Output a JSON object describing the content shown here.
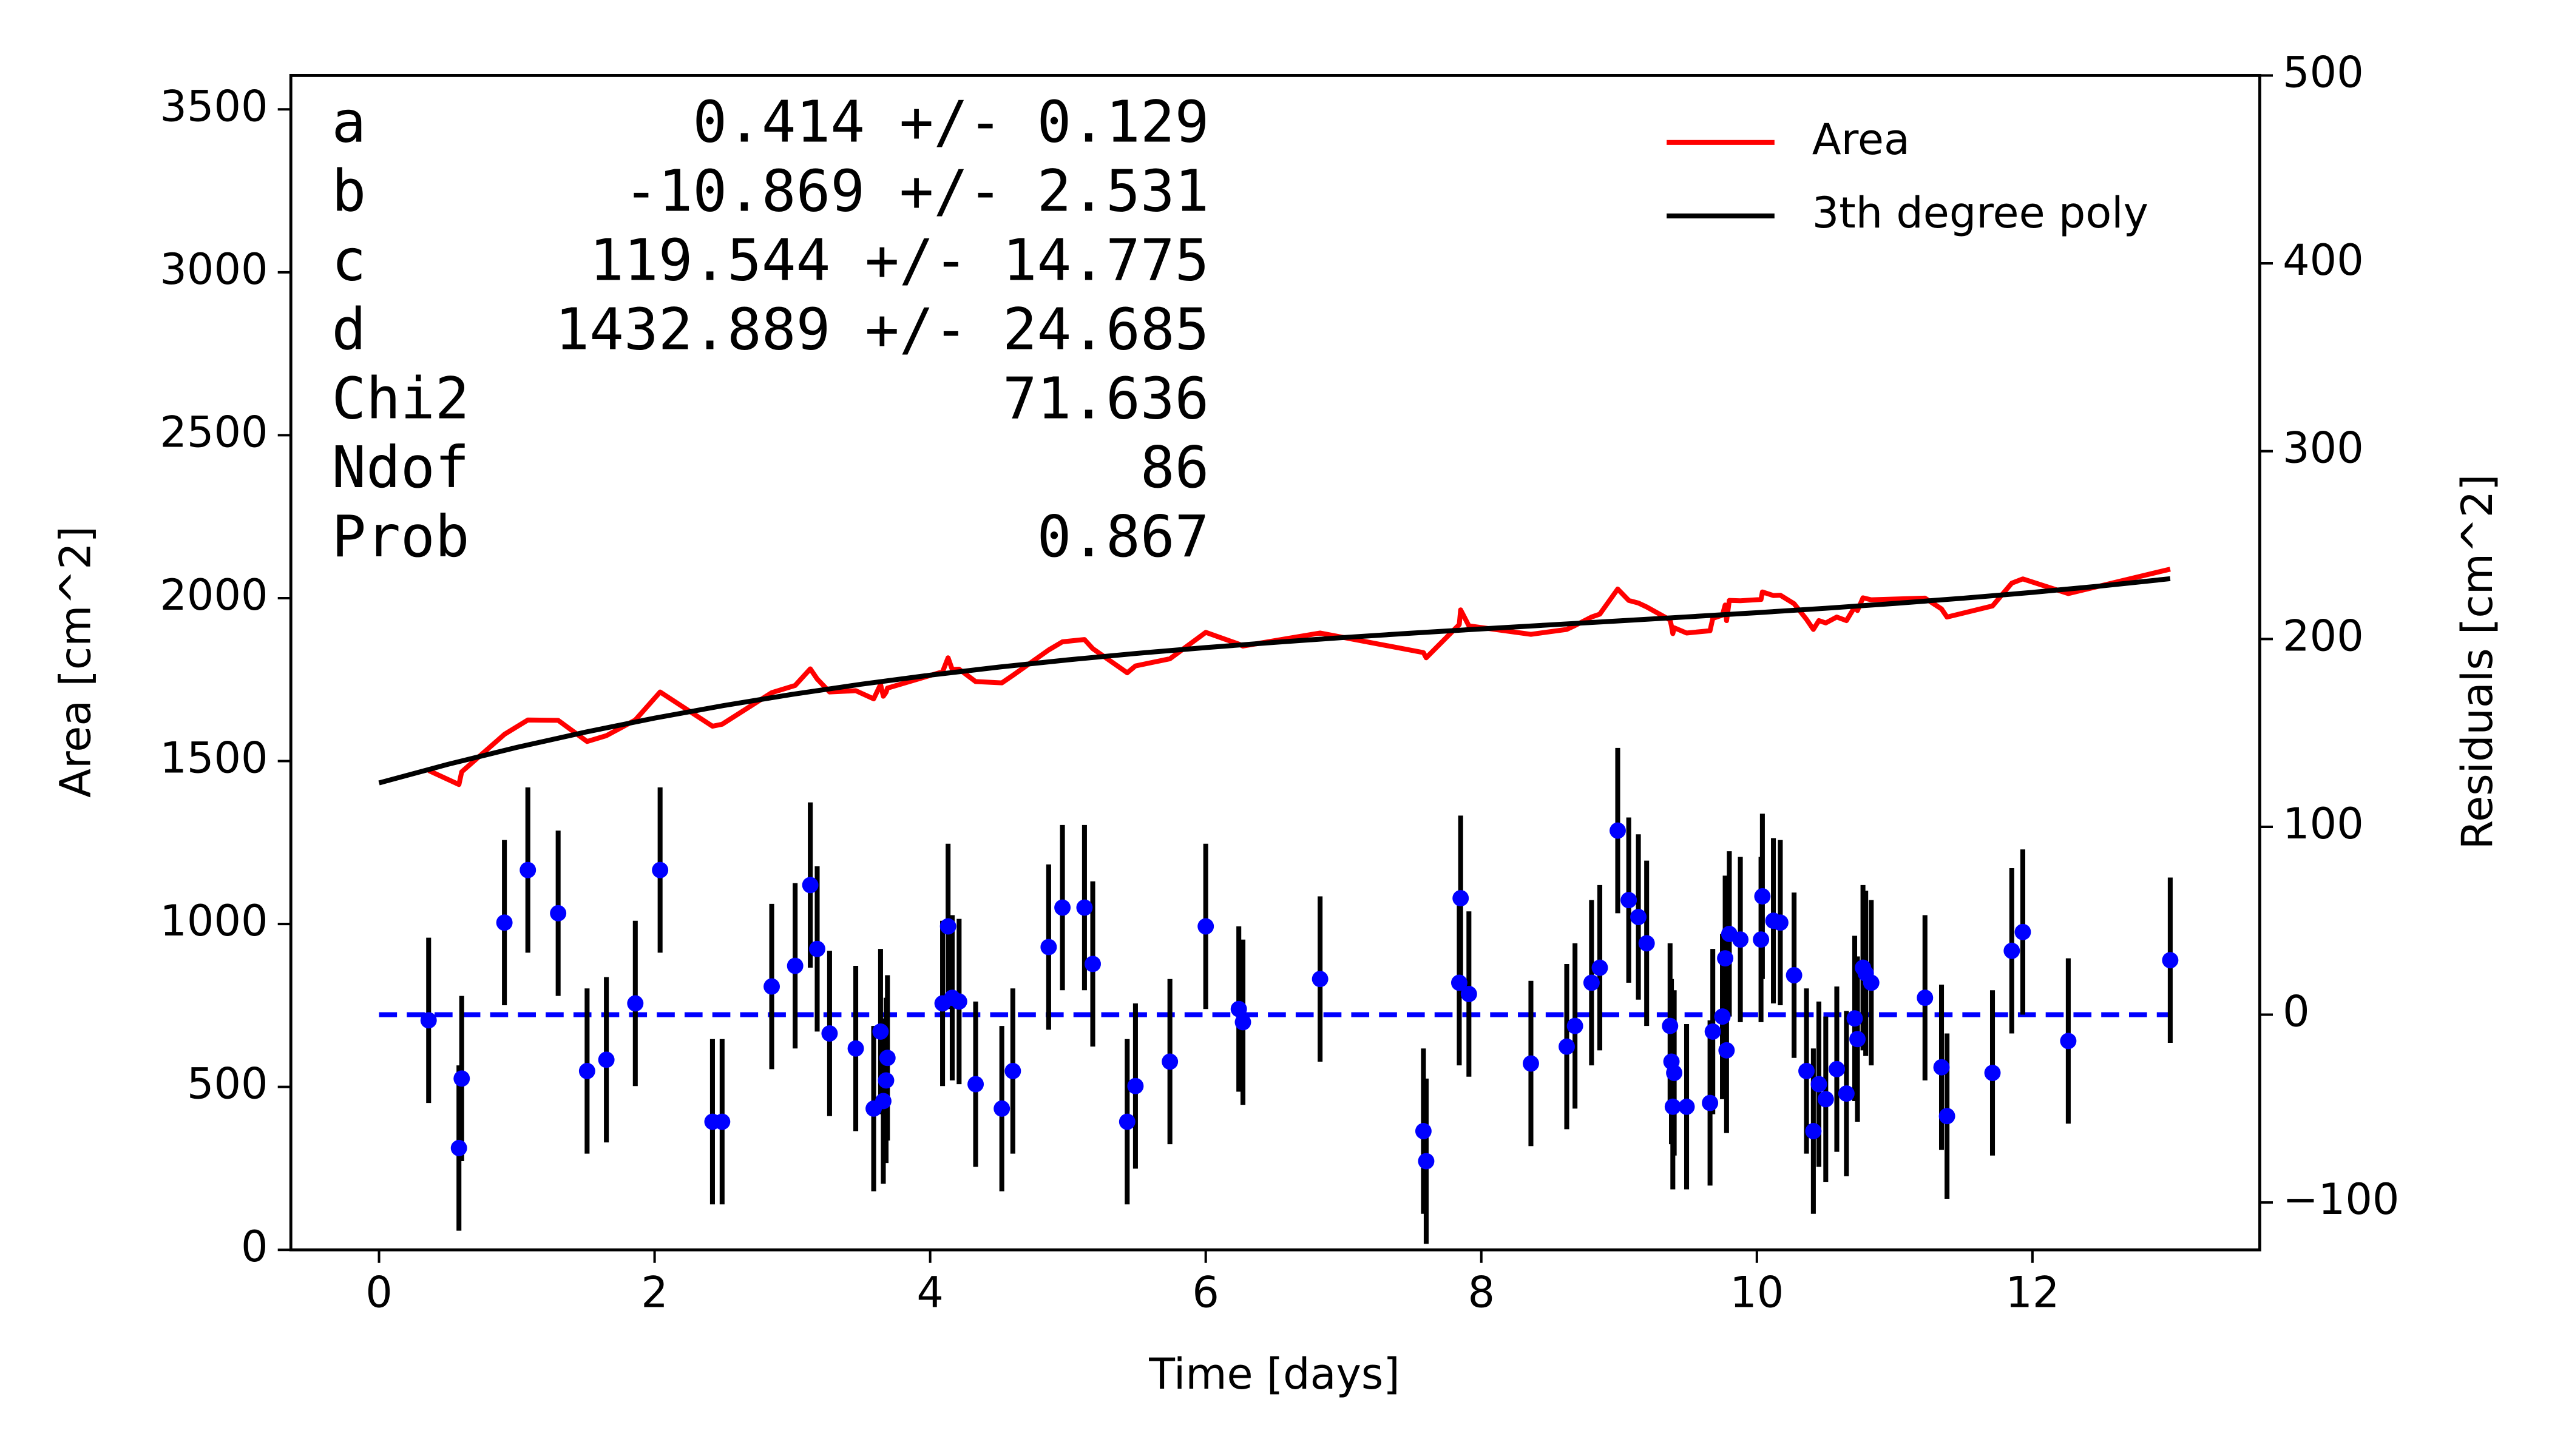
{
  "chart_data": {
    "type": "line",
    "xlabel": "Time [days]",
    "ylabel": "Area [cm^2]",
    "y2label": "Residuals [cm^2]",
    "ylabel_color": "red",
    "y2label_color": "blue",
    "xlim": [
      -0.64,
      13.65
    ],
    "ylim": [
      0,
      3604
    ],
    "y2lim": [
      -125.2,
      500
    ],
    "xticks": [
      0,
      2,
      4,
      6,
      8,
      10,
      12
    ],
    "yticks": [
      0,
      500,
      1000,
      1500,
      2000,
      2500,
      3000,
      3500
    ],
    "y2ticks": [
      {
        "value": -100,
        "label": "−100"
      },
      0,
      100,
      200,
      300,
      400,
      500
    ],
    "legend": "upper right",
    "series": [
      {
        "name": "Area",
        "color": "red",
        "x": [
          0.36,
          0.58,
          0.6,
          0.91,
          1.08,
          1.3,
          1.51,
          1.65,
          1.86,
          2.04,
          2.42,
          2.49,
          2.85,
          3.02,
          3.13,
          3.18,
          3.27,
          3.46,
          3.59,
          3.64,
          3.66,
          3.68,
          3.69,
          4.09,
          4.13,
          4.16,
          4.21,
          4.33,
          4.52,
          4.6,
          4.86,
          4.96,
          5.12,
          5.18,
          5.43,
          5.49,
          5.74,
          6.0,
          6.24,
          6.27,
          6.83,
          7.58,
          7.6,
          7.84,
          7.85,
          7.91,
          8.36,
          8.62,
          8.68,
          8.8,
          8.86,
          8.99,
          9.07,
          9.14,
          9.2,
          9.37,
          9.38,
          9.39,
          9.4,
          9.49,
          9.66,
          9.68,
          9.75,
          9.77,
          9.78,
          9.8,
          9.88,
          10.03,
          10.04,
          10.12,
          10.17,
          10.27,
          10.36,
          10.41,
          10.45,
          10.5,
          10.58,
          10.65,
          10.71,
          10.73,
          10.77,
          10.79,
          10.83,
          11.22,
          11.34,
          11.38,
          11.71,
          11.85,
          11.93,
          12.26,
          13.0
        ],
        "values": [
          1471,
          1428,
          1467,
          1582,
          1626,
          1625,
          1560,
          1578,
          1626,
          1712,
          1607,
          1613,
          1710,
          1732,
          1783,
          1752,
          1712,
          1716,
          1691,
          1735,
          1699,
          1711,
          1724,
          1774,
          1817,
          1781,
          1782,
          1744,
          1740,
          1763,
          1841,
          1866,
          1873,
          1845,
          1771,
          1792,
          1814,
          1895,
          1859,
          1853,
          1893,
          1833,
          1817,
          1919,
          1964,
          1915,
          1889,
          1904,
          1916,
          1942,
          1951,
          2028,
          1993,
          1985,
          1973,
          1933,
          1915,
          1891,
          1909,
          1893,
          1900,
          1938,
          1948,
          1979,
          1931,
          1993,
          1992,
          1996,
          2019,
          2008,
          2009,
          1983,
          1935,
          1904,
          1931,
          1924,
          1942,
          1931,
          1973,
          1962,
          2001,
          1999,
          1995,
          2000,
          1967,
          1942,
          1976,
          2046,
          2059,
          2014,
          2089
        ]
      },
      {
        "name": "3th degree poly",
        "color": "black",
        "x": [
          0,
          0.5,
          1,
          1.5,
          2,
          2.5,
          3,
          3.5,
          4,
          4.5,
          5,
          5.5,
          6,
          6.5,
          7,
          7.5,
          8,
          8.5,
          9,
          9.5,
          10,
          10.5,
          11,
          11.5,
          12,
          12.5,
          13
        ],
        "values": [
          1432.9,
          1490.0,
          1542.0,
          1589.1,
          1631.8,
          1670.3,
          1704.9,
          1735.9,
          1763.7,
          1788.5,
          1810.6,
          1830.5,
          1848.3,
          1864.4,
          1879.1,
          1892.8,
          1905.6,
          1918.0,
          1930.2,
          1942.7,
          1955.4,
          1969.0,
          1983.8,
          1999.9,
          2017.7,
          2037.5,
          2059.7
        ]
      },
      {
        "type": "errorbar",
        "axis": "y2",
        "color": "blue",
        "ecolor": "black",
        "x": [
          0.36,
          0.58,
          0.6,
          0.91,
          1.08,
          1.3,
          1.51,
          1.65,
          1.86,
          2.04,
          2.42,
          2.49,
          2.85,
          3.02,
          3.13,
          3.18,
          3.27,
          3.46,
          3.59,
          3.64,
          3.66,
          3.68,
          3.69,
          4.09,
          4.13,
          4.16,
          4.21,
          4.33,
          4.52,
          4.6,
          4.86,
          4.96,
          5.12,
          5.18,
          5.43,
          5.49,
          5.74,
          6.0,
          6.24,
          6.27,
          6.83,
          7.58,
          7.6,
          7.84,
          7.85,
          7.91,
          8.36,
          8.62,
          8.68,
          8.8,
          8.86,
          8.99,
          9.07,
          9.14,
          9.2,
          9.37,
          9.38,
          9.39,
          9.4,
          9.49,
          9.66,
          9.68,
          9.75,
          9.77,
          9.78,
          9.8,
          9.88,
          10.03,
          10.04,
          10.12,
          10.17,
          10.27,
          10.36,
          10.41,
          10.45,
          10.5,
          10.58,
          10.65,
          10.71,
          10.73,
          10.77,
          10.79,
          10.83,
          11.22,
          11.34,
          11.38,
          11.71,
          11.85,
          11.93,
          12.26,
          13.0
        ],
        "values": [
          -3,
          -71,
          -34,
          49,
          77,
          54,
          -30,
          -24,
          6,
          77,
          -57,
          -57,
          15,
          26,
          69,
          35,
          -10,
          -18,
          -50,
          -9,
          -46,
          -35,
          -23,
          6,
          47,
          9,
          7,
          -37,
          -50,
          -30,
          36,
          57,
          57,
          27,
          -57,
          -38,
          -25,
          47,
          3,
          -4,
          19,
          -62,
          -78,
          17,
          62,
          11,
          -26,
          -17,
          -6,
          17,
          25,
          98,
          61,
          52,
          38,
          -6,
          -25,
          -49,
          -31,
          -49,
          -47,
          -9,
          -1,
          30,
          -19,
          43,
          40,
          40,
          63,
          50,
          49,
          21,
          -30,
          -62,
          -37,
          -45,
          -29,
          -42,
          -2,
          -13,
          25,
          22,
          17,
          9,
          -28,
          -54,
          -31,
          34,
          44,
          -14,
          29
        ],
        "errors": [
          44,
          44,
          44,
          44,
          44,
          44,
          44,
          44,
          44,
          44,
          44,
          44,
          44,
          44,
          44,
          44,
          44,
          44,
          44,
          44,
          44,
          44,
          44,
          44,
          44,
          44,
          44,
          44,
          44,
          44,
          44,
          44,
          44,
          44,
          44,
          44,
          44,
          44,
          44,
          44,
          44,
          44,
          44,
          44,
          44,
          44,
          44,
          44,
          44,
          44,
          44,
          44,
          44,
          44,
          44,
          44,
          44,
          44,
          44,
          44,
          44,
          44,
          44,
          44,
          44,
          44,
          44,
          44,
          44,
          44,
          44,
          44,
          44,
          44,
          44,
          44,
          44,
          44,
          44,
          44,
          44,
          44,
          44,
          44,
          44,
          44,
          44,
          44,
          44,
          44,
          44
        ]
      }
    ],
    "hline": {
      "y": 0,
      "x": [
        0,
        13
      ],
      "color": "blue",
      "axis": "y2"
    },
    "annotation": [
      [
        "a",
        "0.414 +/- 0.129"
      ],
      [
        "b",
        "-10.869 +/- 2.531"
      ],
      [
        "c",
        "119.544 +/- 14.775"
      ],
      [
        "d",
        "1432.889 +/- 24.685"
      ],
      [
        "Chi2",
        "71.636"
      ],
      [
        "Ndof",
        "86"
      ],
      [
        "Prob",
        "0.867"
      ]
    ]
  }
}
